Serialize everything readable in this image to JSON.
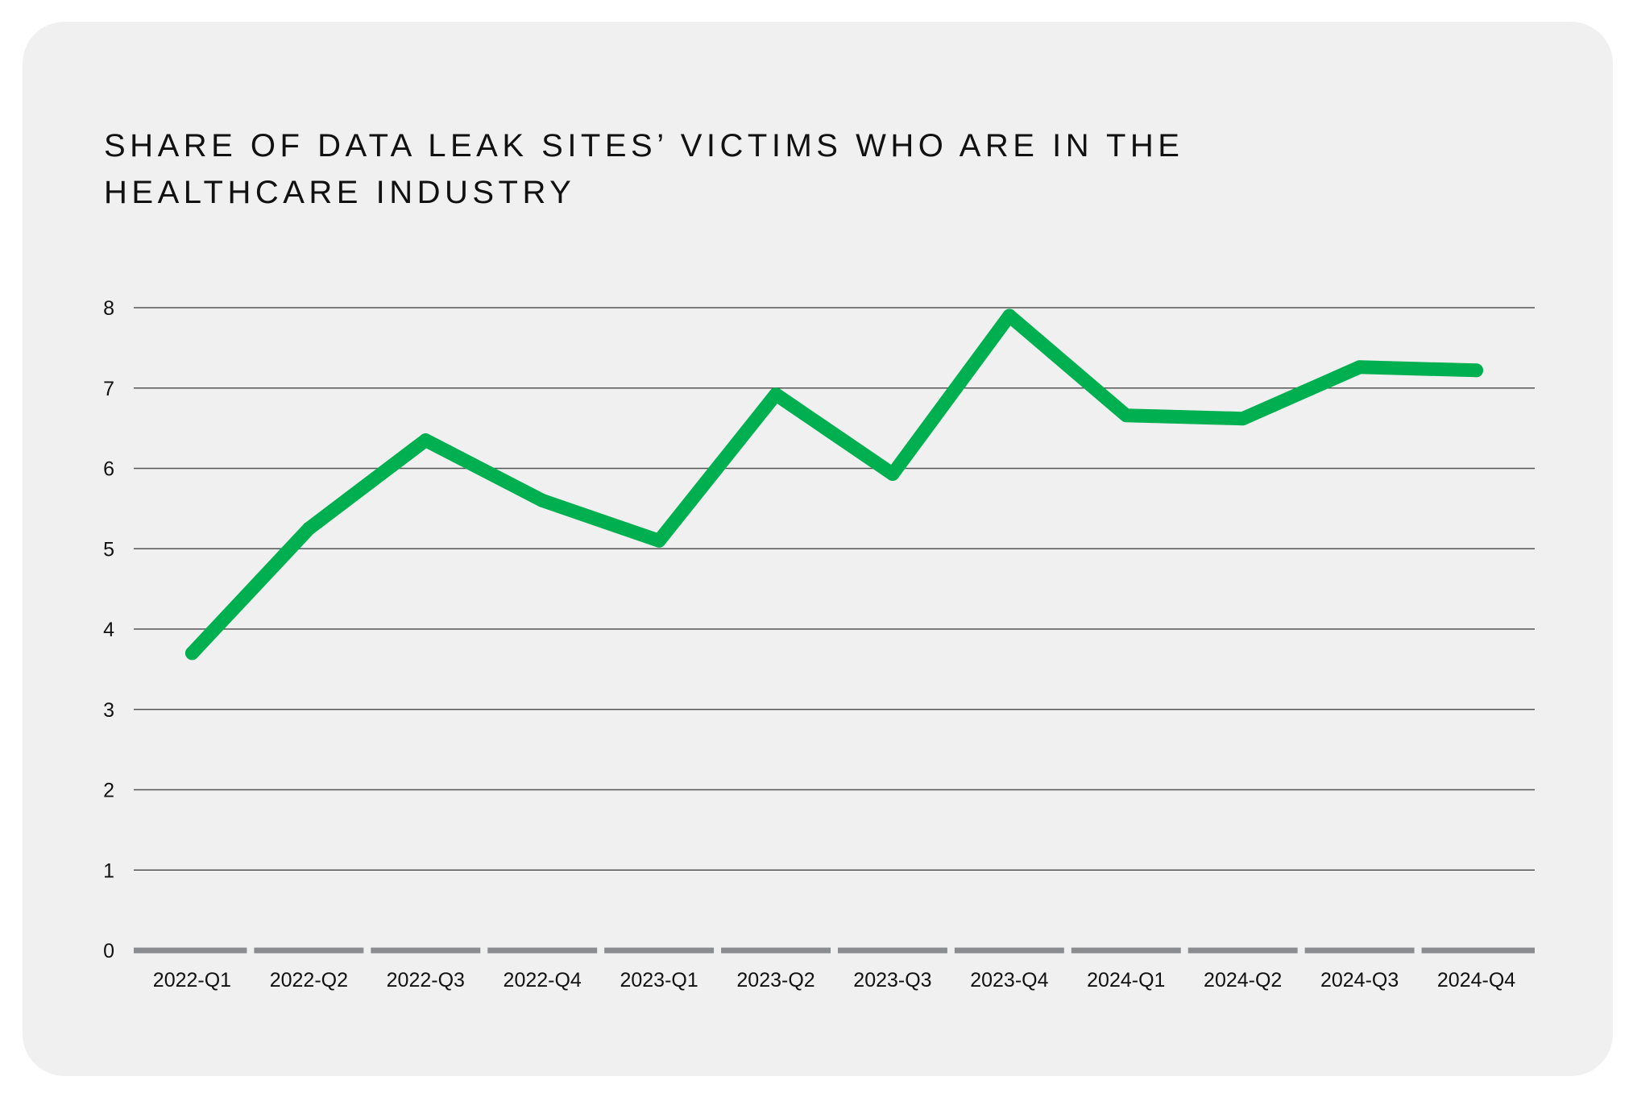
{
  "title_lines": [
    "SHARE OF DATA LEAK SITES’ VICTIMS WHO ARE IN THE",
    "HEALTHCARE INDUSTRY"
  ],
  "colors": {
    "background": "#eff0ef",
    "line": "#00b050",
    "grid": "#555555",
    "baseline": "#8a8c90"
  },
  "chart_data": {
    "type": "line",
    "title": "SHARE OF DATA LEAK SITES’ VICTIMS WHO ARE IN THE HEALTHCARE INDUSTRY",
    "xlabel": "",
    "ylabel": "",
    "categories": [
      "2022-Q1",
      "2022-Q2",
      "2022-Q3",
      "2022-Q4",
      "2023-Q1",
      "2023-Q2",
      "2023-Q3",
      "2023-Q4",
      "2024-Q1",
      "2024-Q2",
      "2024-Q3",
      "2024-Q4"
    ],
    "series": [
      {
        "values": [
          3.7,
          5.25,
          6.35,
          5.6,
          5.1,
          6.92,
          5.93,
          7.9,
          6.66,
          6.62,
          7.26,
          7.22
        ]
      }
    ],
    "ylim": [
      0,
      8
    ],
    "yticks": [
      0,
      1,
      2,
      3,
      4,
      5,
      6,
      7,
      8
    ],
    "grid": true,
    "legend": "none"
  }
}
